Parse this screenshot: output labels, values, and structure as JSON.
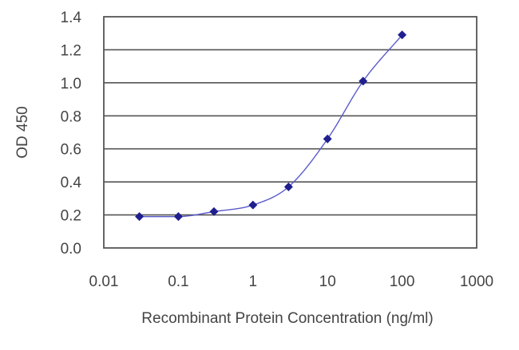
{
  "chart_data": {
    "type": "scatter",
    "title": "",
    "xlabel": "Recombinant Protein Concentration (ng/ml)",
    "ylabel": "OD 450",
    "x_scale": "log",
    "xlim": [
      0.01,
      1000
    ],
    "ylim": [
      0.0,
      1.4
    ],
    "x_ticks": [
      "0.01",
      "0.1",
      "1",
      "10",
      "100",
      "1000"
    ],
    "y_ticks": [
      "0.0",
      "0.2",
      "0.4",
      "0.6",
      "0.8",
      "1.0",
      "1.2",
      "1.4"
    ],
    "grid": "horizontal",
    "legend": "none",
    "series": [
      {
        "x": [
          0.03,
          0.1,
          0.3,
          1,
          3,
          10,
          30,
          100
        ],
        "y": [
          0.19,
          0.19,
          0.22,
          0.26,
          0.37,
          0.66,
          1.01,
          1.29
        ],
        "color": "#1f1f8f",
        "marker": "diamond",
        "fitted_curve": true
      }
    ]
  }
}
